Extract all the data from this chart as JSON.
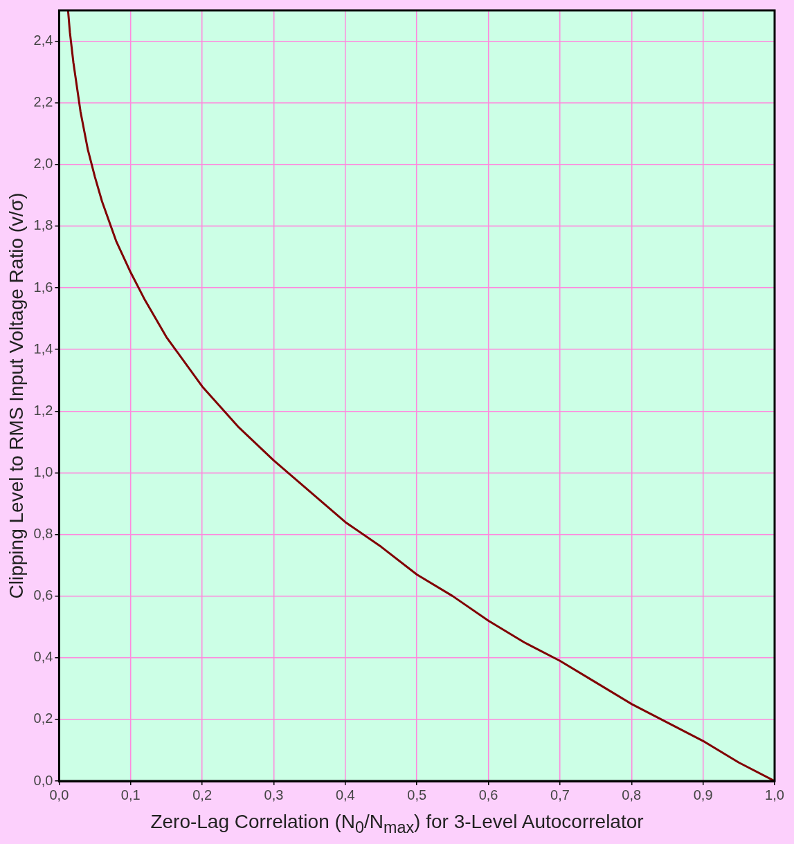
{
  "chart_data": {
    "type": "line",
    "xlabel": "Zero-Lag Correlation (N$_{0}$/N$_{max}$) for 3-Level Autocorrelator",
    "ylabel": "Clipping Level to RMS Input Voltage Ratio (v/σ)",
    "x": [
      0.0125,
      0.015,
      0.02,
      0.03,
      0.04,
      0.05,
      0.06,
      0.08,
      0.1,
      0.12,
      0.15,
      0.2,
      0.25,
      0.3,
      0.35,
      0.4,
      0.45,
      0.5,
      0.55,
      0.6,
      0.65,
      0.7,
      0.75,
      0.8,
      0.85,
      0.9,
      0.95,
      1.0
    ],
    "series": [
      {
        "color": "#800000",
        "values": [
          2.5,
          2.43,
          2.33,
          2.17,
          2.05,
          1.96,
          1.88,
          1.75,
          1.65,
          1.56,
          1.44,
          1.28,
          1.15,
          1.04,
          0.94,
          0.84,
          0.76,
          0.67,
          0.6,
          0.52,
          0.45,
          0.39,
          0.32,
          0.25,
          0.19,
          0.13,
          0.06,
          0.0
        ]
      }
    ],
    "xlim": [
      0,
      1
    ],
    "ylim": [
      0,
      2.5
    ],
    "xticks": [
      {
        "value": 0,
        "label": "0,0"
      },
      {
        "value": 0.1,
        "label": "0,1"
      },
      {
        "value": 0.2,
        "label": "0,2"
      },
      {
        "value": 0.3,
        "label": "0,3"
      },
      {
        "value": 0.4,
        "label": "0,4"
      },
      {
        "value": 0.5,
        "label": "0,5"
      },
      {
        "value": 0.6,
        "label": "0,6"
      },
      {
        "value": 0.7,
        "label": "0,7"
      },
      {
        "value": 0.8,
        "label": "0,8"
      },
      {
        "value": 0.9,
        "label": "0,9"
      },
      {
        "value": 1,
        "label": "1,0"
      }
    ],
    "yticks": [
      {
        "value": 0,
        "label": "0,0"
      },
      {
        "value": 0.2,
        "label": "0,2"
      },
      {
        "value": 0.4,
        "label": "0,4"
      },
      {
        "value": 0.6,
        "label": "0,6"
      },
      {
        "value": 0.8,
        "label": "0,8"
      },
      {
        "value": 1.0,
        "label": "1,0"
      },
      {
        "value": 1.2,
        "label": "1,2"
      },
      {
        "value": 1.4,
        "label": "1,4"
      },
      {
        "value": 1.6,
        "label": "1,6"
      },
      {
        "value": 1.8,
        "label": "1,8"
      },
      {
        "value": 2.0,
        "label": "2,0"
      },
      {
        "value": 2.2,
        "label": "2,2"
      },
      {
        "value": 2.4,
        "label": "2,4"
      }
    ],
    "grid": true,
    "legend": false,
    "marker": "none",
    "line_style": "solid"
  }
}
